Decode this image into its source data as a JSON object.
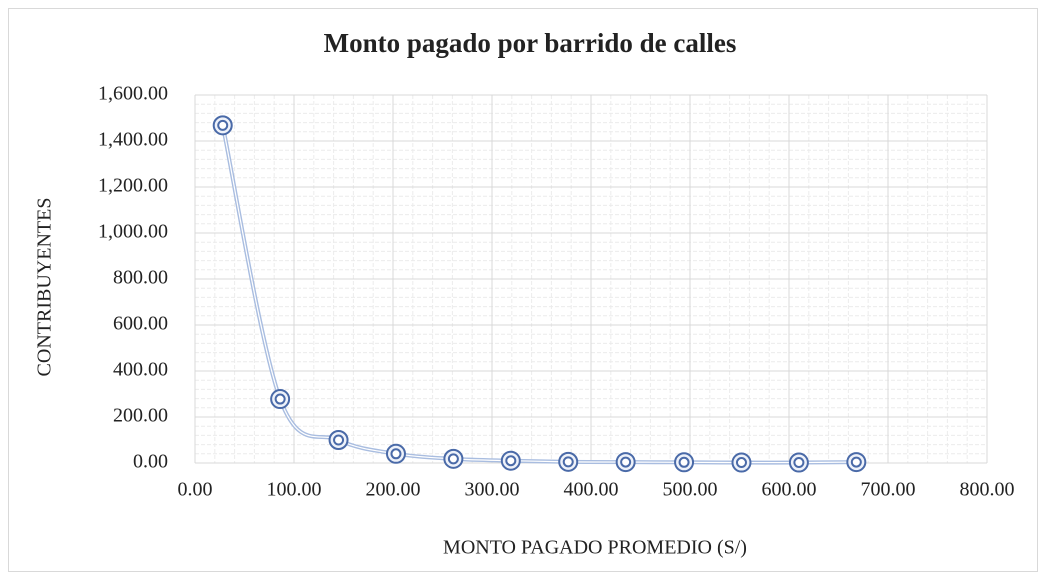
{
  "chart_data": {
    "type": "scatter_smooth",
    "title": "Monto pagado por barrido de calles",
    "x_label": "MONTO PAGADO PROMEDIO (S/)",
    "y_label": "CONTRIBUYENTES",
    "series": [
      {
        "color": "#4a6aa8",
        "line_color": "#a9bde0",
        "x": [
          28,
          86,
          145,
          203,
          261,
          319,
          377,
          435,
          494,
          552,
          610,
          668
        ],
        "values": [
          1468,
          278,
          100,
          40,
          18,
          10,
          5,
          4,
          3,
          2,
          2,
          4
        ]
      }
    ],
    "xlim": [
      0,
      800
    ],
    "xticks": [
      {
        "value": 0,
        "label": "0.00"
      },
      {
        "value": 100,
        "label": "100.00"
      },
      {
        "value": 200,
        "label": "200.00"
      },
      {
        "value": 300,
        "label": "300.00"
      },
      {
        "value": 400,
        "label": "400.00"
      },
      {
        "value": 500,
        "label": "500.00"
      },
      {
        "value": 600,
        "label": "600.00"
      },
      {
        "value": 700,
        "label": "700.00"
      },
      {
        "value": 800,
        "label": "800.00"
      }
    ],
    "ylim": [
      0,
      1600
    ],
    "yticks": [
      {
        "value": 0,
        "label": "0.00"
      },
      {
        "value": 200,
        "label": "200.00"
      },
      {
        "value": 400,
        "label": "400.00"
      },
      {
        "value": 600,
        "label": "600.00"
      },
      {
        "value": 800,
        "label": "800.00"
      },
      {
        "value": 1000,
        "label": "1,000.00"
      },
      {
        "value": 1200,
        "label": "1,200.00"
      },
      {
        "value": 1400,
        "label": "1,400.00"
      },
      {
        "value": 1600,
        "label": "1,600.00"
      }
    ],
    "grid": true,
    "minor_grid": true
  }
}
